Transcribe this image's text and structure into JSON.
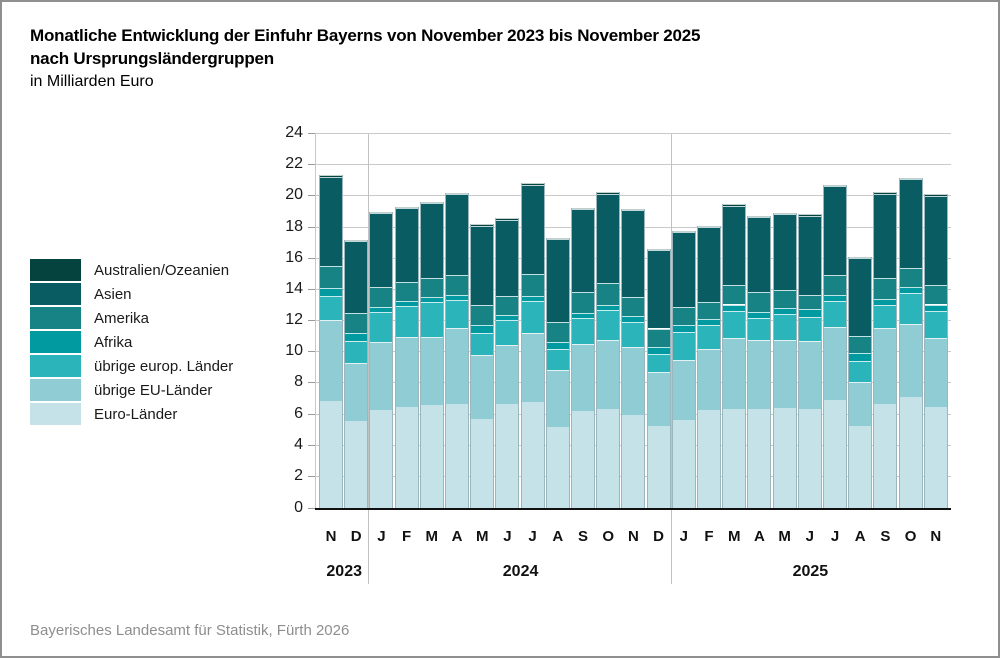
{
  "title": {
    "line1": "Monatliche Entwicklung der Einfuhr Bayerns von November 2023 bis November 2025",
    "line2": "nach Ursprungsländergruppen",
    "line3": "in Milliarden Euro"
  },
  "footer": "Bayerisches Landesamt für Statistik, Fürth 2026",
  "colors": {
    "gridline": "#c9c9c9",
    "axis": "#111111",
    "separator": "#c2c2c2",
    "bar_stroke": "#9bb7bd",
    "footer_text": "#8e8e8e",
    "frame_border": "#8f8f8f"
  },
  "chart_data": {
    "type": "bar",
    "stacked": true,
    "unit": "Milliarden Euro",
    "ylim": [
      0,
      24
    ],
    "yticks": [
      0,
      2,
      4,
      6,
      8,
      10,
      12,
      14,
      16,
      18,
      20,
      22,
      24
    ],
    "grid": true,
    "legend_position": "left",
    "categories": [
      "N",
      "D",
      "J",
      "F",
      "M",
      "A",
      "M",
      "J",
      "J",
      "A",
      "S",
      "O",
      "N",
      "D",
      "J",
      "F",
      "M",
      "A",
      "M",
      "J",
      "J",
      "A",
      "S",
      "O",
      "N"
    ],
    "year_groups": [
      {
        "label": "2023",
        "from": 0,
        "to": 1
      },
      {
        "label": "2024",
        "from": 2,
        "to": 13
      },
      {
        "label": "2025",
        "from": 14,
        "to": 24
      }
    ],
    "legend_order_top_to_bottom": [
      "Australien/Ozeanien",
      "Asien",
      "Amerika",
      "Afrika",
      "übrige europ. Länder",
      "übrige EU-Länder",
      "Euro-Länder"
    ],
    "series": [
      {
        "name": "Euro-Länder",
        "color": "#c5e2e8",
        "values": [
          6.87,
          5.59,
          6.27,
          6.49,
          6.59,
          6.7,
          5.74,
          6.7,
          6.81,
          5.2,
          6.21,
          6.34,
          5.95,
          5.27,
          5.63,
          6.27,
          6.38,
          6.34,
          6.42,
          6.38,
          6.92,
          5.27,
          6.7,
          7.13,
          6.49
        ]
      },
      {
        "name": "übrige EU-Länder",
        "color": "#8fccd3",
        "values": [
          5.18,
          3.72,
          4.39,
          4.49,
          4.39,
          4.82,
          4.07,
          3.75,
          4.39,
          3.64,
          4.34,
          4.47,
          4.39,
          3.47,
          3.85,
          3.96,
          4.5,
          4.43,
          4.35,
          4.33,
          4.7,
          2.82,
          4.82,
          4.71,
          4.39
        ]
      },
      {
        "name": "übrige europ. Länder",
        "color": "#2bb5ba",
        "values": [
          1.57,
          1.42,
          1.93,
          1.99,
          2.25,
          1.86,
          1.39,
          1.6,
          2.07,
          1.35,
          1.67,
          1.89,
          1.61,
          1.17,
          1.82,
          1.54,
          1.75,
          1.45,
          1.65,
          1.56,
          1.67,
          1.33,
          1.5,
          1.93,
          1.75
        ]
      },
      {
        "name": "Afrika",
        "color": "#009aa0",
        "values": [
          0.51,
          0.51,
          0.32,
          0.3,
          0.32,
          0.32,
          0.53,
          0.33,
          0.35,
          0.47,
          0.3,
          0.32,
          0.38,
          0.43,
          0.43,
          0.33,
          0.43,
          0.37,
          0.43,
          0.47,
          0.41,
          0.54,
          0.42,
          0.42,
          0.43
        ]
      },
      {
        "name": "Amerika",
        "color": "#178384",
        "values": [
          1.41,
          1.28,
          1.28,
          1.24,
          1.22,
          1.24,
          1.29,
          1.24,
          1.37,
          1.29,
          1.35,
          1.39,
          1.22,
          1.18,
          1.18,
          1.09,
          1.28,
          1.28,
          1.13,
          0.96,
          1.24,
          1.07,
          1.33,
          1.22,
          1.28
        ]
      },
      {
        "name": "Asien",
        "color": "#0a5c63",
        "values": [
          5.72,
          4.61,
          4.74,
          4.74,
          4.8,
          5.21,
          5.1,
          4.88,
          5.76,
          5.31,
          5.32,
          5.76,
          5.55,
          5.05,
          4.8,
          4.84,
          5.06,
          4.8,
          4.89,
          5.06,
          5.74,
          5.01,
          5.4,
          5.71,
          5.7
        ]
      },
      {
        "name": "Australien/Ozeanien",
        "color": "#05443e",
        "values": [
          0.08,
          0.08,
          0.08,
          0.08,
          0.08,
          0.08,
          0.08,
          0.08,
          0.08,
          0.08,
          0.08,
          0.08,
          0.08,
          0.08,
          0.08,
          0.08,
          0.08,
          0.08,
          0.08,
          0.08,
          0.08,
          0.08,
          0.08,
          0.08,
          0.08
        ]
      }
    ]
  }
}
